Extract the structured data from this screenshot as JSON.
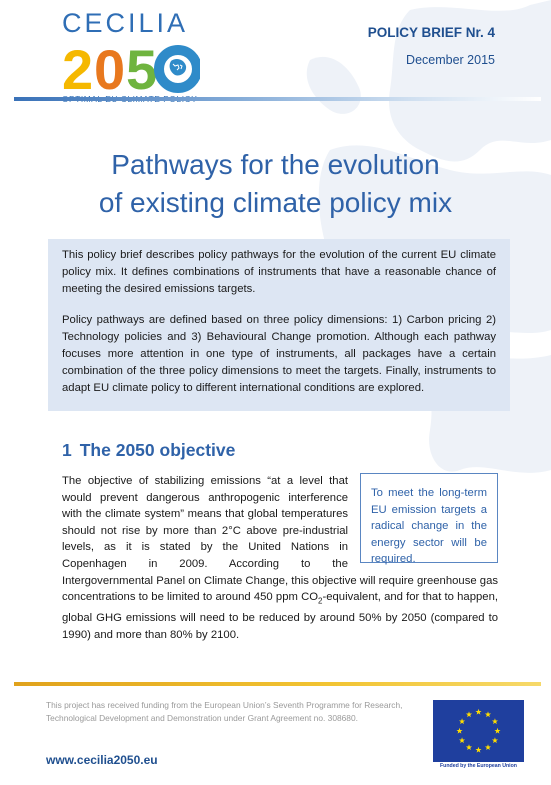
{
  "header": {
    "logo_name": "CECILIA",
    "logo_year_digits": [
      "2",
      "0",
      "5",
      "0"
    ],
    "logo_tagline": "OPTIMAL EU CLIMATE POLICY",
    "brief_number": "POLICY BRIEF Nr. 4",
    "date": "December 2015"
  },
  "title": {
    "line1": "Pathways for the evolution",
    "line2": "of existing climate policy mix"
  },
  "summary": {
    "para1": "This policy brief describes policy pathways for the evolution of the current EU climate policy mix. It defines combinations of instruments that have a reasonable chance of meeting the desired emissions targets.",
    "para2": "Policy pathways are defined based on three policy dimensions: 1) Carbon pricing 2) Technology policies and 3) Behavioural Change promotion. Although each pathway focuses more attention in one type of instruments, all packages have a certain combination of the three policy dimensions to meet the targets. Finally, instruments to adapt EU climate policy to different international conditions are explored."
  },
  "section1": {
    "number": "1",
    "heading": "The 2050 objective",
    "callout": "To meet the long-term EU emission targets a radical change in the energy sector will be required.",
    "body_before_sub": "The objective of stabilizing emissions “at a level that would prevent dangerous anthropogenic interference with the climate system” means that global temperatures should not rise by more than 2°C above pre-industrial levels, as it is stated by the United Nations in Copenhagen in 2009. According to the Intergovernmental Panel on Climate Change, this objective will require greenhouse gas concentrations to be limited to around 450 ppm CO",
    "body_sub": "2",
    "body_after_sub": "-equivalent, and for that to happen, global GHG emissions will need to be reduced by around 50% by 2050 (compared to 1990) and more than 80% by 2100."
  },
  "footer": {
    "funding_note": "This project has received funding from the European Union’s Seventh Programme for Research, Technological Development and Demonstration under Grant Agreement no. 308680.",
    "website": "www.cecilia2050.eu",
    "eu_caption": "Funded by the European Union"
  },
  "colors": {
    "brand_blue": "#2f62a8",
    "summary_bg": "#dde6f3",
    "footer_gold": "#e0a21c",
    "eu_blue": "#1f3f9e",
    "eu_star": "#ffdd00"
  }
}
